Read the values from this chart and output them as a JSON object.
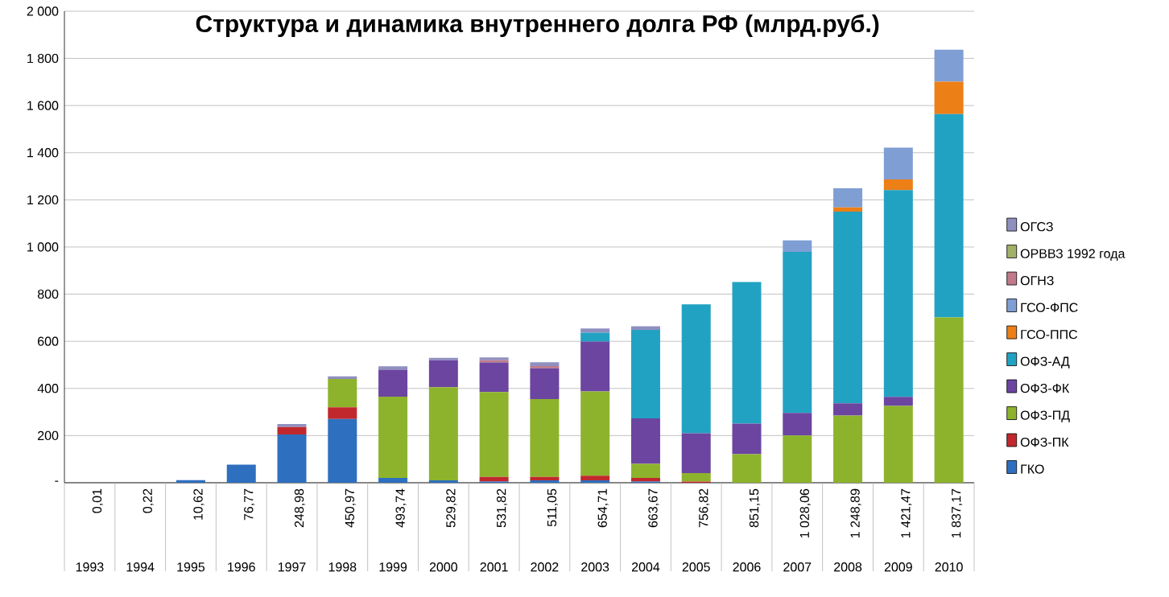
{
  "chart_data": {
    "type": "bar",
    "stacked": true,
    "title": "Структура и динамика внутреннего долга РФ (млрд.руб.)",
    "categories": [
      "1993",
      "1994",
      "1995",
      "1996",
      "1997",
      "1998",
      "1999",
      "2000",
      "2001",
      "2002",
      "2003",
      "2004",
      "2005",
      "2006",
      "2007",
      "2008",
      "2009",
      "2010"
    ],
    "series": [
      {
        "name": "ГКО",
        "color": "#2e6fbf",
        "values": [
          0.01,
          0.22,
          10.62,
          76.77,
          205,
          270,
          20,
          10,
          5,
          10,
          10,
          5,
          null,
          null,
          null,
          null,
          null,
          null
        ]
      },
      {
        "name": "ОФЗ-ПК",
        "color": "#c0282d",
        "values": [
          null,
          null,
          null,
          null,
          31,
          50,
          null,
          null,
          20,
          15,
          20,
          15,
          5,
          null,
          null,
          null,
          null,
          null
        ]
      },
      {
        "name": "ОФЗ-ПД",
        "color": "#8db32c",
        "values": [
          null,
          null,
          null,
          null,
          null,
          119.97,
          345,
          395,
          360,
          330,
          357,
          60,
          36,
          121,
          200,
          285,
          326,
          701
        ]
      },
      {
        "name": "ОФЗ-ФК",
        "color": "#6b45a0",
        "values": [
          null,
          null,
          null,
          null,
          null,
          null,
          114.74,
          114.82,
          124.82,
          130.05,
          211.71,
          193,
          169,
          130,
          96,
          52,
          38,
          null
        ]
      },
      {
        "name": "ОФЗ-АД",
        "color": "#22a2c2",
        "values": [
          null,
          null,
          null,
          null,
          null,
          null,
          null,
          null,
          null,
          null,
          38,
          375.67,
          546.82,
          600.15,
          683.06,
          812.89,
          877.47,
          863.17
        ]
      },
      {
        "name": "ГСО-ППС",
        "color": "#ec7f16",
        "values": [
          null,
          null,
          null,
          null,
          null,
          null,
          null,
          null,
          null,
          null,
          null,
          null,
          null,
          null,
          null,
          18,
          45,
          137
        ]
      },
      {
        "name": "ГСО-ФПС",
        "color": "#7f9ed4",
        "values": [
          null,
          null,
          null,
          null,
          null,
          null,
          null,
          null,
          null,
          null,
          null,
          null,
          null,
          null,
          49,
          81,
          135,
          136
        ]
      },
      {
        "name": "ОГНЗ",
        "color": "#c07a8a",
        "values": [
          null,
          null,
          null,
          null,
          null,
          null,
          null,
          null,
          10,
          10,
          null,
          null,
          null,
          null,
          null,
          null,
          null,
          null
        ]
      },
      {
        "name": "ОРВВЗ 1992 года",
        "color": "#a3b06a",
        "values": [
          null,
          null,
          null,
          null,
          null,
          null,
          null,
          null,
          null,
          null,
          null,
          null,
          null,
          null,
          null,
          null,
          null,
          null
        ]
      },
      {
        "name": "ОГСЗ",
        "color": "#8f8fc0",
        "values": [
          null,
          null,
          null,
          null,
          12.98,
          11,
          14,
          10,
          12,
          16,
          18,
          15,
          null,
          null,
          null,
          null,
          null,
          null
        ]
      }
    ],
    "totals": [
      "0,01",
      "0,22",
      "10,62",
      "76,77",
      "248,98",
      "450,97",
      "493,74",
      "529,82",
      "531,82",
      "511,05",
      "654,71",
      "663,67",
      "756,82",
      "851,15",
      "1 028,06",
      "1 248,89",
      "1 421,47",
      "1 837,17"
    ],
    "ylim": [
      0,
      2000
    ],
    "yticks": [
      {
        "value": 0,
        "label": "-"
      },
      200,
      400,
      600,
      800,
      {
        "value": 1000,
        "label": "1 000"
      },
      {
        "value": 1200,
        "label": "1 200"
      },
      {
        "value": 1400,
        "label": "1 400"
      },
      {
        "value": 1600,
        "label": "1 600"
      },
      {
        "value": 1800,
        "label": "1 800"
      },
      {
        "value": 2000,
        "label": "2 000"
      }
    ],
    "grid": "y",
    "legend": "right"
  }
}
